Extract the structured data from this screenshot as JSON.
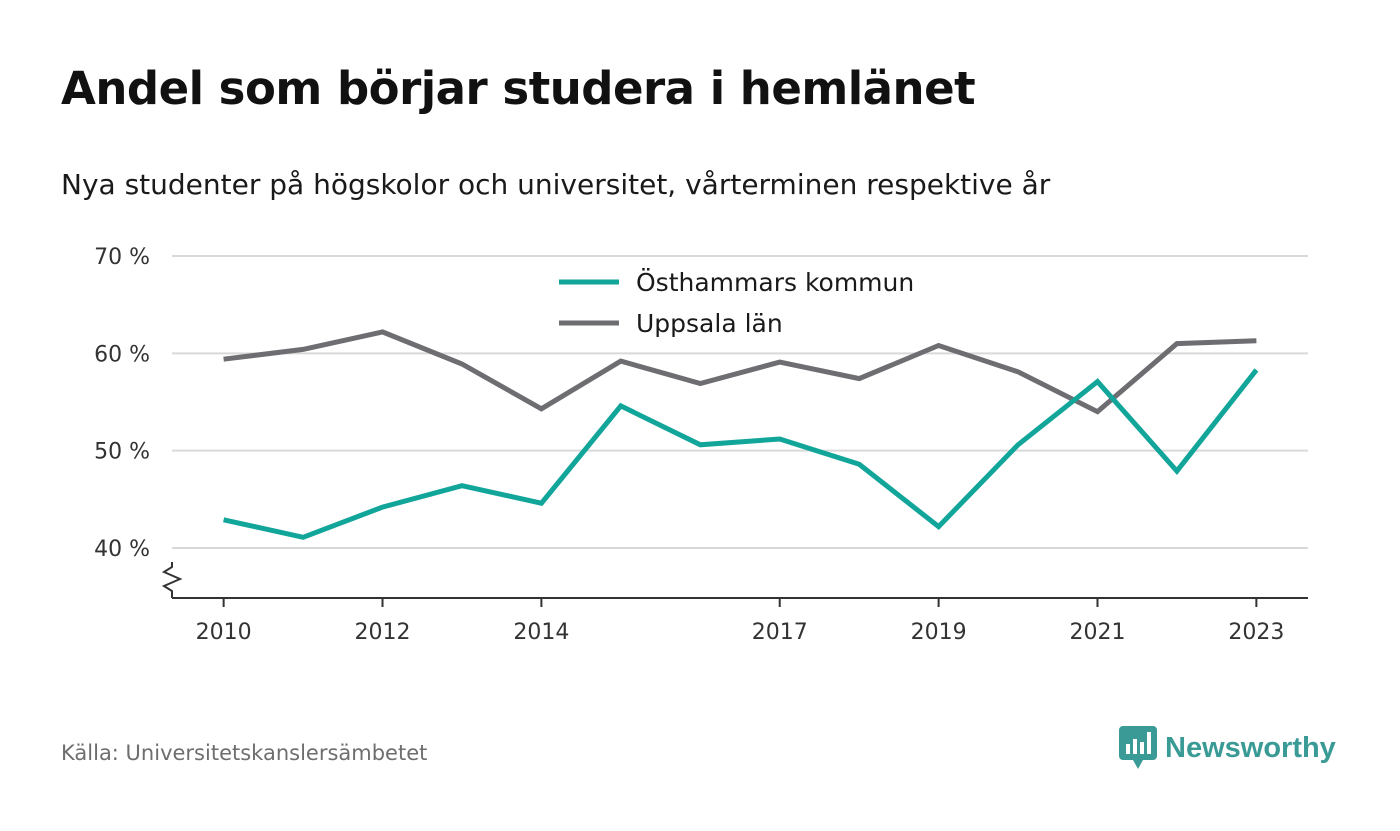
{
  "header": {
    "title": "Andel som börjar studera i hemlänet",
    "subtitle": "Nya studenter på högskolor och universitet, vårterminen respektive år"
  },
  "footer": {
    "source": "Källa: Universitetskanslersämbetet",
    "brand": "Newsworthy",
    "brand_icon": "bar-chart-speech-bubble-icon",
    "brand_color": "#3a9a96"
  },
  "chart_data": {
    "type": "line",
    "title": "Andel som börjar studera i hemlänet",
    "subtitle": "Nya studenter på högskolor och universitet, vårterminen respektive år",
    "x": [
      2010,
      2011,
      2012,
      2013,
      2014,
      2015,
      2016,
      2017,
      2018,
      2019,
      2020,
      2021,
      2022,
      2023
    ],
    "x_ticks": [
      2010,
      2012,
      2014,
      2017,
      2019,
      2021,
      2023
    ],
    "xlim": [
      2009.35,
      2023.65
    ],
    "ylim": [
      35,
      70
    ],
    "y_ticks": [
      {
        "value": 40,
        "label": "40 %"
      },
      {
        "value": 50,
        "label": "50 %"
      },
      {
        "value": 60,
        "label": "60 %"
      },
      {
        "value": 70,
        "label": "70 %"
      }
    ],
    "y_axis_break": true,
    "grid": "horizontal",
    "legend_position": "top-center",
    "series": [
      {
        "name": "Östhammars kommun",
        "color": "#12a59a",
        "values": [
          42.9,
          41.1,
          44.2,
          46.4,
          44.6,
          54.6,
          50.6,
          51.2,
          48.6,
          42.2,
          50.6,
          57.1,
          47.9,
          58.3
        ]
      },
      {
        "name": "Uppsala län",
        "color": "#6e6d72",
        "values": [
          59.4,
          60.4,
          62.2,
          58.9,
          54.3,
          59.2,
          56.9,
          59.1,
          57.4,
          60.8,
          58.1,
          54.0,
          61.0,
          61.3
        ]
      }
    ]
  }
}
